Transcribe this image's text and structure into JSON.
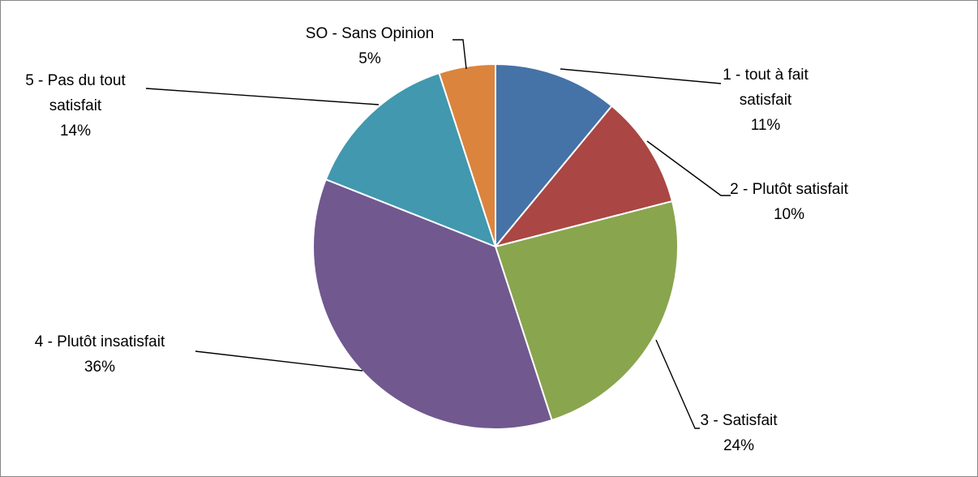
{
  "chart_data": {
    "type": "pie",
    "start_angle_deg": 0,
    "direction": "clockwise",
    "slices": [
      {
        "label": "1 - tout à fait satisfait",
        "label_lines": [
          "1 - tout à fait",
          "satisfait"
        ],
        "value": 11,
        "pct_text": "11%",
        "color": "#4572A7"
      },
      {
        "label": "2 - Plutôt satisfait",
        "label_lines": [
          "2 - Plutôt satisfait"
        ],
        "value": 10,
        "pct_text": "10%",
        "color": "#AA4643"
      },
      {
        "label": "3 - Satisfait",
        "label_lines": [
          "3 - Satisfait"
        ],
        "value": 24,
        "pct_text": "24%",
        "color": "#89A54E"
      },
      {
        "label": "4 - Plutôt insatisfait",
        "label_lines": [
          "4 - Plutôt insatisfait"
        ],
        "value": 36,
        "pct_text": "36%",
        "color": "#71588F"
      },
      {
        "label": "5 - Pas du tout satisfait",
        "label_lines": [
          "5 - Pas du tout",
          "satisfait"
        ],
        "value": 14,
        "pct_text": "14%",
        "color": "#4198AF"
      },
      {
        "label": "SO - Sans Opinion",
        "label_lines": [
          "SO - Sans Opinion"
        ],
        "value": 5,
        "pct_text": "5%",
        "color": "#DB843D"
      }
    ]
  }
}
